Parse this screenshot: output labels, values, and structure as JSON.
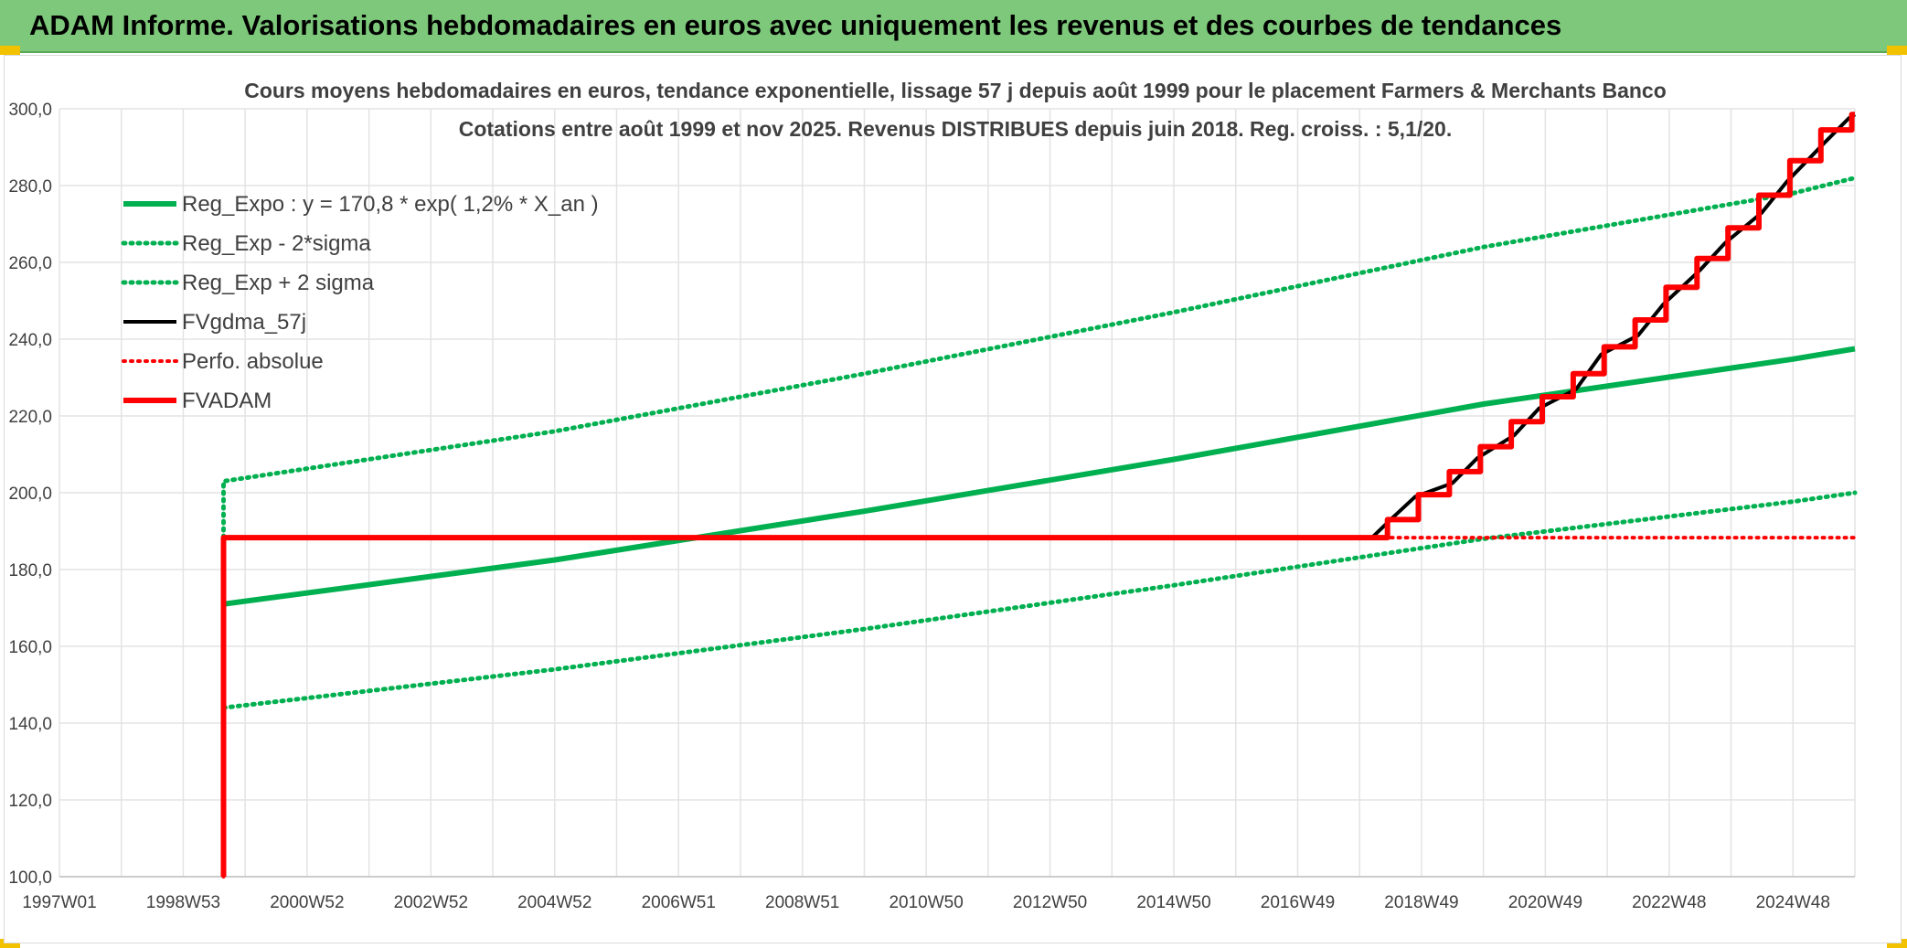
{
  "banner": {
    "title": "ADAM Informe. Valorisations hebdomadaires en euros avec uniquement les revenus et des courbes de tendances"
  },
  "chart_data": {
    "type": "line",
    "title": "Cours moyens hebdomadaires en euros, tendance exponentielle, lissage 57 j depuis août 1999 pour le placement Farmers & Merchants Banco",
    "subtitle": "Cotations entre août 1999 et nov 2025. Revenus DISTRIBUES depuis juin 2018. Reg. croiss. : 5,1/20.",
    "xlabel": "",
    "ylabel": "",
    "ylim": [
      100,
      300
    ],
    "xlim": [
      1997.0,
      2026.0
    ],
    "grid": true,
    "legend_position": "top-left",
    "y_ticks": [
      "100,0",
      "120,0",
      "140,0",
      "160,0",
      "180,0",
      "200,0",
      "220,0",
      "240,0",
      "260,0",
      "280,0",
      "300,0"
    ],
    "x_ticks": [
      {
        "label": "1997W01",
        "x": 1997.0
      },
      {
        "label": "1998W53",
        "x": 1999.0
      },
      {
        "label": "2000W52",
        "x": 2001.0
      },
      {
        "label": "2002W52",
        "x": 2003.0
      },
      {
        "label": "2004W52",
        "x": 2005.0
      },
      {
        "label": "2006W51",
        "x": 2007.0
      },
      {
        "label": "2008W51",
        "x": 2009.0
      },
      {
        "label": "2010W50",
        "x": 2011.0
      },
      {
        "label": "2012W50",
        "x": 2013.0
      },
      {
        "label": "2014W50",
        "x": 2015.0
      },
      {
        "label": "2016W49",
        "x": 2017.0
      },
      {
        "label": "2018W49",
        "x": 2019.0
      },
      {
        "label": "2020W49",
        "x": 2021.0
      },
      {
        "label": "2022W48",
        "x": 2023.0
      },
      {
        "label": "2024W48",
        "x": 2025.0
      }
    ],
    "series": [
      {
        "name": "Reg_Expo : y = 170,8 * exp( 1,2% *  X_an )",
        "color": "#00b050",
        "style": "solid",
        "width": 6,
        "x": [
          1999.65,
          2005.0,
          2010.0,
          2015.0,
          2020.0,
          2025.0,
          2026.0
        ],
        "y": [
          171.0,
          182.5,
          195.2,
          208.7,
          223.1,
          234.8,
          237.5
        ]
      },
      {
        "name": "Reg_Exp - 2*sigma",
        "color": "#00b050",
        "style": "dotted",
        "width": 5,
        "x": [
          1999.65,
          2005.0,
          2010.0,
          2015.0,
          2020.0,
          2025.0,
          2026.0
        ],
        "y": [
          144.0,
          154.0,
          164.5,
          175.9,
          188.0,
          197.7,
          200.0
        ]
      },
      {
        "name": "Reg_Exp + 2 sigma",
        "color": "#00b050",
        "style": "dotted",
        "width": 5,
        "x": [
          1999.65,
          1999.65,
          2005.0,
          2010.0,
          2015.0,
          2020.0,
          2025.0,
          2026.0
        ],
        "y": [
          188.3,
          203.0,
          216.0,
          231.0,
          247.0,
          264.0,
          278.0,
          282.0
        ]
      },
      {
        "name": "FVgdma_57j",
        "color": "#000000",
        "style": "solid",
        "width": 4,
        "x": [
          1999.65,
          1999.65,
          2018.2,
          2018.5,
          2018.9,
          2019.5,
          2019.9,
          2020.5,
          2020.9,
          2021.5,
          2021.9,
          2022.5,
          2022.9,
          2023.5,
          2023.9,
          2024.5,
          2024.9,
          2025.5,
          2025.9,
          2026.0
        ],
        "y": [
          100.0,
          188.3,
          188.3,
          193.0,
          199.0,
          202.5,
          209.0,
          215.0,
          222.0,
          227.0,
          236.0,
          241.0,
          249.0,
          258.0,
          265.0,
          273.0,
          281.0,
          291.0,
          297.5,
          298.5
        ]
      },
      {
        "name": "Perfo. absolue",
        "color": "#ff0000",
        "style": "dotted",
        "width": 4,
        "x": [
          1999.65,
          1999.65,
          2026.0
        ],
        "y": [
          100.0,
          188.3,
          188.3
        ]
      },
      {
        "name": "FVADAM",
        "color": "#ff0000",
        "style": "solid",
        "width": 6,
        "x": [
          1999.65,
          1999.65,
          2018.45,
          2018.45,
          2018.95,
          2018.95,
          2019.45,
          2019.45,
          2019.95,
          2019.95,
          2020.45,
          2020.45,
          2020.95,
          2020.95,
          2021.45,
          2021.45,
          2021.95,
          2021.95,
          2022.45,
          2022.45,
          2022.95,
          2022.95,
          2023.45,
          2023.45,
          2023.95,
          2023.95,
          2024.45,
          2024.45,
          2024.95,
          2024.95,
          2025.45,
          2025.45,
          2025.95,
          2025.95,
          2026.0
        ],
        "y": [
          100.0,
          188.3,
          188.3,
          193.0,
          193.0,
          199.5,
          199.5,
          205.5,
          205.5,
          212.0,
          212.0,
          218.5,
          218.5,
          225.0,
          225.0,
          231.0,
          231.0,
          238.0,
          238.0,
          245.0,
          245.0,
          253.5,
          253.5,
          261.0,
          261.0,
          269.0,
          269.0,
          277.5,
          277.5,
          286.5,
          286.5,
          294.5,
          294.5,
          298.5,
          298.5
        ]
      }
    ]
  }
}
